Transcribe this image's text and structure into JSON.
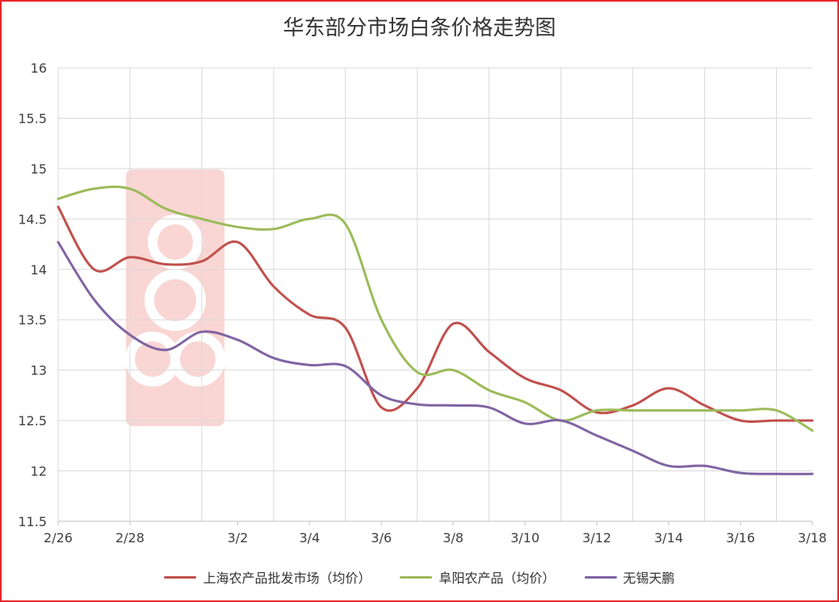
{
  "chart_data": {
    "type": "line",
    "title": "华东部分市场白条价格走势图",
    "xlabel": "",
    "ylabel": "",
    "ylim": [
      11.5,
      16
    ],
    "yticks": [
      "11.5",
      "12",
      "12.5",
      "13",
      "13.5",
      "14",
      "14.5",
      "15",
      "15.5",
      "16"
    ],
    "xticks": [
      "2/26",
      "2/28",
      "3/2",
      "3/4",
      "3/6",
      "3/8",
      "3/10",
      "3/12",
      "3/14",
      "3/16",
      "3/18"
    ],
    "categories": [
      "2/26",
      "2/27",
      "2/28",
      "2/29",
      "3/1",
      "3/2",
      "3/3",
      "3/4",
      "3/5",
      "3/6",
      "3/7",
      "3/8",
      "3/9",
      "3/10",
      "3/11",
      "3/12",
      "3/13",
      "3/14",
      "3/15",
      "3/16",
      "3/17",
      "3/18"
    ],
    "grid": true,
    "legend_position": "bottom",
    "series": [
      {
        "name": "上海农产品批发市场（均价）",
        "color": "#c0504d",
        "values": [
          14.62,
          14.0,
          14.12,
          14.05,
          14.08,
          14.27,
          13.83,
          13.55,
          13.42,
          12.63,
          12.82,
          13.46,
          13.18,
          12.92,
          12.8,
          12.58,
          12.65,
          12.82,
          12.65,
          12.5,
          12.5,
          12.5
        ]
      },
      {
        "name": "阜阳农产品（均价）",
        "color": "#9bbb59",
        "values": [
          14.7,
          14.8,
          14.8,
          14.6,
          14.5,
          14.42,
          14.4,
          14.5,
          14.45,
          13.5,
          12.98,
          13.0,
          12.8,
          12.68,
          12.5,
          12.6,
          12.6,
          12.6,
          12.6,
          12.6,
          12.6,
          12.4
        ]
      },
      {
        "name": "无锡天鹏",
        "color": "#8064a2",
        "values": [
          14.27,
          13.7,
          13.35,
          13.2,
          13.38,
          13.3,
          13.12,
          13.05,
          13.04,
          12.75,
          12.66,
          12.65,
          12.63,
          12.47,
          12.5,
          12.35,
          12.2,
          12.05,
          12.05,
          11.98,
          11.97,
          11.97
        ]
      }
    ]
  }
}
